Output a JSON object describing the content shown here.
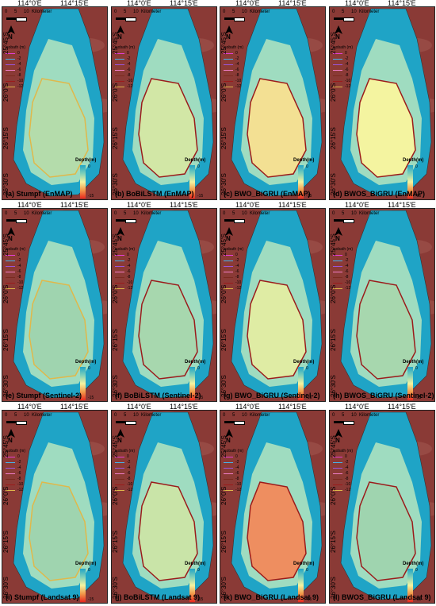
{
  "longitude_labels": [
    "114°0'E",
    "114°15'E"
  ],
  "latitude_labels": [
    "25°45'S",
    "26°0'S",
    "26°15'S",
    "26°30'S"
  ],
  "scale_bar": {
    "ticks": [
      "0",
      "5",
      "10"
    ],
    "unit": "Kilometer"
  },
  "north_arrow": {
    "label": "N"
  },
  "isobath_legend": {
    "title": "isobath (m)",
    "levels": [
      {
        "label": "0",
        "color": "#e23fd4"
      },
      {
        "label": "-2",
        "color": "#45b6ee"
      },
      {
        "label": "-4",
        "color": "#9a55d8"
      },
      {
        "label": "-6",
        "color": "#f07dc8"
      },
      {
        "label": "-8",
        "color": "#7a2a1f"
      },
      {
        "label": "-10",
        "color": "#9b1b1b"
      },
      {
        "label": "-12",
        "color": "#e0b84a"
      }
    ]
  },
  "colorbar": {
    "title": "Depth(m)",
    "max_label": "0",
    "min_label": "-15"
  },
  "colors": {
    "land": "#8a3a36",
    "deep": "#e8281f",
    "shallow": "#1fa4c6",
    "mid": "#f4f4a0"
  },
  "panels": [
    {
      "caption": "(a) Stumpf (EnMAP)",
      "depth_level": 0.35,
      "contour": "#e0b84a"
    },
    {
      "caption": "(b) BoBiLSTM (EnMAP)",
      "depth_level": 0.42,
      "contour": "#9b1b1b"
    },
    {
      "caption": "(c) BWO_BiGRU (EnMAP)",
      "depth_level": 0.55,
      "contour": "#9b1b1b"
    },
    {
      "caption": "(d) BWOS_BiGRU (EnMAP)",
      "depth_level": 0.5,
      "contour": "#9b1b1b"
    },
    {
      "caption": "(e) Stumpf (Sentinel-2)",
      "depth_level": 0.3,
      "contour": "#e0b84a"
    },
    {
      "caption": "(f) BoBiLSTM (Sentinel-2)",
      "depth_level": 0.32,
      "contour": "#9b1b1b"
    },
    {
      "caption": "(g) BWO_BiGRU (Sentinel-2)",
      "depth_level": 0.45,
      "contour": "#9b1b1b"
    },
    {
      "caption": "(h) BWOS_BiGRU (Sentinel-2)",
      "depth_level": 0.32,
      "contour": "#9b1b1b"
    },
    {
      "caption": "(i) Stumpf (Landsat 9)",
      "depth_level": 0.3,
      "contour": "#e0b84a"
    },
    {
      "caption": "(j) BoBiLSTM (Landsat 9)",
      "depth_level": 0.4,
      "contour": "#9b1b1b"
    },
    {
      "caption": "(k) BWO_BiGRU (Landsat 9)",
      "depth_level": 0.75,
      "contour": "#9b1b1b"
    },
    {
      "caption": "(l) BWOS_BiGRU (Landsat 9)",
      "depth_level": 0.3,
      "contour": "#9b1b1b"
    }
  ]
}
